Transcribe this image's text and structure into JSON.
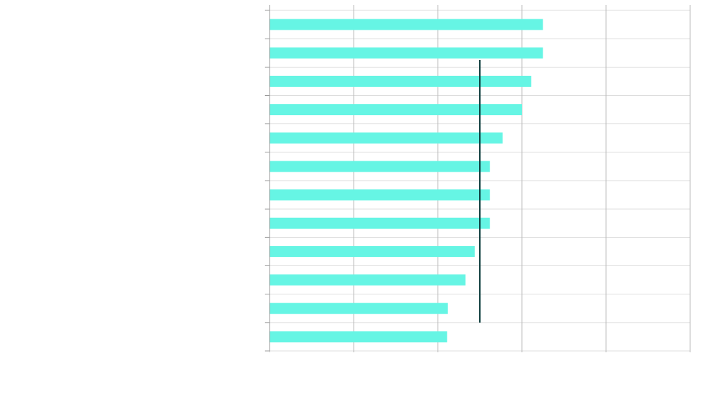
{
  "chart_data": {
    "type": "bar",
    "orientation": "horizontal",
    "title": "",
    "xlabel": "",
    "ylabel": "",
    "categories": [
      "",
      "",
      "",
      "",
      "",
      "",
      "",
      "",
      "",
      "",
      "",
      ""
    ],
    "values": [
      3.25,
      3.25,
      3.11,
      3.0,
      2.77,
      2.62,
      2.62,
      2.62,
      2.44,
      2.33,
      2.12,
      2.11
    ],
    "xlim": [
      0,
      5
    ],
    "x_gridline_values": [
      0,
      1,
      2,
      3,
      4,
      5
    ],
    "reference_line": {
      "value": 2.5
    },
    "grid": true,
    "legend": "none",
    "colors": {
      "bar": "#66f5e4",
      "grid": "#dddddd",
      "vertical_grid": "#bbbbbb",
      "axis": "#999999",
      "reference_line": "#0b3b3b"
    }
  }
}
